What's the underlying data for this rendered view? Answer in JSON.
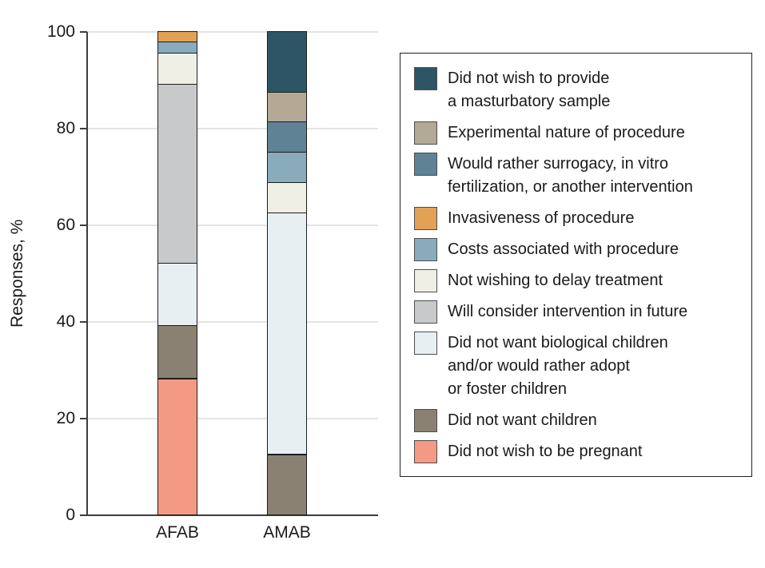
{
  "figure": {
    "background": "#ffffff",
    "text_color": "#1a1a1a",
    "axis_color": "#3d3d3d",
    "gridline_color": "#e4e4e4",
    "segment_border_color": "#1d1d1d"
  },
  "chart_data": {
    "type": "bar",
    "subtype": "stacked-percent",
    "title": "",
    "xlabel": "",
    "ylabel": "Responses, %",
    "categories": [
      "AFAB",
      "AMAB"
    ],
    "ylim": [
      0,
      100
    ],
    "y_ticks": [
      0,
      20,
      40,
      60,
      80,
      100
    ],
    "grid": true,
    "legend_position": "right",
    "stacking_order": "bottom-to-top",
    "series": [
      {
        "name": "Did not wish to be pregnant",
        "color": "#F49A84",
        "values": [
          28.3,
          0
        ]
      },
      {
        "name": "Did not want children",
        "color": "#8A8173",
        "values": [
          10.9,
          12.5
        ]
      },
      {
        "name": "Did not want biological children and/or would rather adopt or foster children",
        "color": "#E7EFF3",
        "values": [
          13.0,
          50.0
        ]
      },
      {
        "name": "Will consider intervention in future",
        "color": "#C7C9CB",
        "values": [
          37.0,
          0
        ]
      },
      {
        "name": "Not wishing to delay treatment",
        "color": "#EFEFE5",
        "values": [
          6.5,
          6.25
        ]
      },
      {
        "name": "Costs associated with procedure",
        "color": "#8AABBC",
        "values": [
          2.2,
          6.25
        ]
      },
      {
        "name": "Invasiveness of procedure",
        "color": "#E2A155",
        "values": [
          2.2,
          0
        ]
      },
      {
        "name": "Would rather surrogacy, in vitro fertilization, or another intervention",
        "color": "#5F8295",
        "values": [
          0,
          6.25
        ]
      },
      {
        "name": "Experimental nature of procedure",
        "color": "#B3A995",
        "values": [
          0,
          6.25
        ]
      },
      {
        "name": "Did not wish to provide a masturbatory sample",
        "color": "#2E5565",
        "values": [
          0,
          12.5
        ]
      }
    ]
  },
  "legend": {
    "items": [
      {
        "color": "#2E5565",
        "lines": [
          "Did not wish to provide",
          "a masturbatory sample"
        ]
      },
      {
        "color": "#B3A995",
        "lines": [
          "Experimental nature of procedure"
        ]
      },
      {
        "color": "#5F8295",
        "lines": [
          "Would rather surrogacy, in vitro",
          "fertilization, or another intervention"
        ]
      },
      {
        "color": "#E2A155",
        "lines": [
          "Invasiveness of procedure"
        ]
      },
      {
        "color": "#8AABBC",
        "lines": [
          "Costs associated with procedure"
        ]
      },
      {
        "color": "#EFEFE5",
        "lines": [
          "Not wishing to delay treatment"
        ]
      },
      {
        "color": "#C7C9CB",
        "lines": [
          "Will consider intervention in future"
        ]
      },
      {
        "color": "#E7EFF3",
        "lines": [
          "Did not want biological children",
          "and/or would rather adopt",
          "or foster children"
        ]
      },
      {
        "color": "#8A8173",
        "lines": [
          "Did not want children"
        ]
      },
      {
        "color": "#F49A84",
        "lines": [
          "Did not wish to be pregnant"
        ]
      }
    ]
  }
}
